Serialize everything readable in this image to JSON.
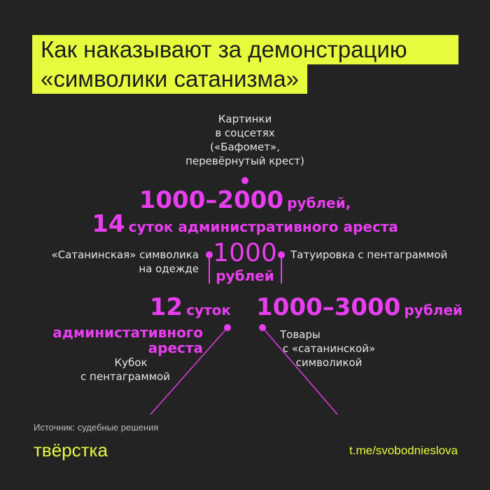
{
  "title": {
    "line1": "Как наказывают за демонстрацию",
    "line2": "«символики сатанизма»"
  },
  "top": {
    "caption": [
      "Картинки",
      "в соцсетях",
      "(«Бафомет»,",
      "перевёрнутый крест)"
    ],
    "fine_big": "1000–2000",
    "fine_unit": "рублей,",
    "arrest_big": "14",
    "arrest_text": "суток административного ареста"
  },
  "middle": {
    "left_text": [
      "«Сатанинская» символика",
      "на одежде"
    ],
    "amount": "1000",
    "unit": "рублей",
    "right_text": "Татуировка с пентаграммой"
  },
  "lower_left": {
    "big": "12",
    "unit": "суток",
    "line2": "администативного",
    "line3": "ареста",
    "caption": [
      "Кубок",
      "с пентаграммой"
    ]
  },
  "lower_right": {
    "big": "1000–3000",
    "unit": "рублей",
    "caption": [
      "Товары",
      "с «сатанинской»",
      "символикой"
    ]
  },
  "footer": {
    "source": "Источник: судебные решения",
    "logo": "твёрстка",
    "link": "t.me/svobodnieslova"
  },
  "colors": {
    "background": "#232323",
    "accent": "#e83ef0",
    "brand": "#e6fb3d"
  }
}
